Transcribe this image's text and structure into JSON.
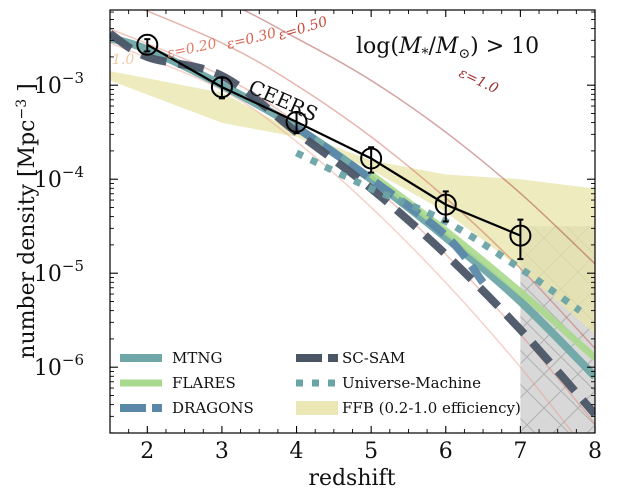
{
  "chart_data": {
    "type": "line",
    "title": "",
    "panel_label": {
      "prefix": "log(",
      "var": "M",
      "sub": "*",
      "slash": "/",
      "var2": "M",
      "sub2": "⊙",
      "suffix": ") > 10"
    },
    "xlabel": "redshift",
    "ylabel": "number density [Mpc",
    "ylabel_sup": "−3",
    "ylabel_end": " ]",
    "xlim": [
      1.5,
      8
    ],
    "ylim_log10": [
      -6.7,
      -2.2
    ],
    "x_ticks": [
      2,
      3,
      4,
      5,
      6,
      7,
      8
    ],
    "x_tick_labels": [
      "2",
      "3",
      "4",
      "5",
      "6",
      "7",
      "8"
    ],
    "y_ticks_log10": [
      -6,
      -5,
      -4,
      -3
    ],
    "y_tick_labels": [
      {
        "base": "10",
        "exp": "−6"
      },
      {
        "base": "10",
        "exp": "−5"
      },
      {
        "base": "10",
        "exp": "−4"
      },
      {
        "base": "10",
        "exp": "−3"
      }
    ],
    "observations": {
      "name": "CEERS",
      "label": "CEERS",
      "x": [
        2,
        3,
        4,
        5,
        6,
        7
      ],
      "log10_y": [
        -2.57,
        -3.02,
        -3.39,
        -3.78,
        -4.27,
        -4.6
      ],
      "log10_err_lo": [
        0.07,
        0.12,
        0.12,
        0.15,
        0.18,
        0.25
      ],
      "log10_err_hi": [
        0.06,
        0.1,
        0.1,
        0.12,
        0.14,
        0.17
      ]
    },
    "series": [
      {
        "name": "MTNG",
        "style": "solid-thick",
        "color": "#6fa6a8",
        "x": [
          1.5,
          2,
          3,
          4,
          5,
          6,
          7,
          8
        ],
        "log10_y": [
          -2.5,
          -2.62,
          -3.0,
          -3.45,
          -4.0,
          -4.62,
          -5.3,
          -6.1
        ]
      },
      {
        "name": "FLARES",
        "style": "solid-thick",
        "color": "#a9d98c",
        "x": [
          5,
          6,
          7,
          8
        ],
        "log10_y": [
          -3.95,
          -4.55,
          -5.2,
          -5.9
        ]
      },
      {
        "name": "DRAGONS",
        "style": "dashed",
        "color": "#5b88a8",
        "x": [
          4,
          5,
          6,
          6.5
        ],
        "log10_y": [
          -3.45,
          -4.0,
          -4.6,
          -5.1
        ]
      },
      {
        "name": "SC-SAM",
        "style": "dashed",
        "color": "#4a5566",
        "x": [
          1.5,
          2,
          3,
          4,
          5,
          6,
          7,
          8
        ],
        "log10_y": [
          -2.45,
          -2.7,
          -2.9,
          -3.5,
          -4.1,
          -4.8,
          -5.6,
          -6.5
        ]
      },
      {
        "name": "Universe-Machine",
        "style": "dotted",
        "color": "#6aa3a6",
        "x": [
          4,
          5,
          6,
          7,
          7.8
        ],
        "log10_y": [
          -3.72,
          -4.1,
          -4.45,
          -4.95,
          -5.4
        ]
      }
    ],
    "ffb_band": {
      "name": "FFB (0.2-1.0 efficiency)",
      "color": "#e8e4a8",
      "x": [
        1.5,
        3,
        4,
        5,
        6,
        7,
        8
      ],
      "log10_upper": [
        -2.85,
        -3.08,
        -3.5,
        -3.8,
        -3.95,
        -4.0,
        -4.1
      ],
      "log10_lower": [
        -2.95,
        -3.4,
        -3.55,
        -3.9,
        -4.35,
        -4.95,
        -5.65
      ]
    },
    "epsilon_curves": [
      {
        "label": "ε=0.20",
        "color": "#e89b88",
        "x": [
          1.5,
          3,
          4,
          5,
          6,
          7,
          8
        ],
        "log10_y": [
          -2.55,
          -3.05,
          -3.6,
          -4.3,
          -5.1,
          -6.0,
          -7.0
        ]
      },
      {
        "label": "ε=0.30",
        "color": "#df8070",
        "x": [
          1.5,
          3,
          4,
          5,
          6,
          7,
          8
        ],
        "log10_y": [
          -2.4,
          -2.9,
          -3.4,
          -4.05,
          -4.8,
          -5.65,
          -6.6
        ]
      },
      {
        "label": "ε=0.50",
        "color": "#c85a4a",
        "x": [
          1.5,
          3,
          4,
          5,
          6,
          7,
          8
        ],
        "log10_y": [
          -2.05,
          -2.55,
          -3.0,
          -3.55,
          -4.2,
          -4.95,
          -5.8
        ]
      },
      {
        "label": "ε=1.0",
        "color": "#a03232",
        "x": [
          1.5,
          3,
          4,
          5,
          6,
          7,
          8
        ],
        "log10_y": [
          -1.7,
          -2.1,
          -2.5,
          -2.95,
          -3.5,
          -4.15,
          -4.9
        ]
      }
    ],
    "faint_edge_label": "1.0",
    "shaded_region": {
      "x_min": 7,
      "x_max": 8,
      "note": "hatched grey exclusion region"
    },
    "legend": {
      "placement": "lower-left",
      "entries": [
        "MTNG",
        "FLARES",
        "DRAGONS",
        "SC-SAM",
        "Universe-Machine",
        "FFB (0.2-1.0 efficiency)"
      ]
    }
  }
}
